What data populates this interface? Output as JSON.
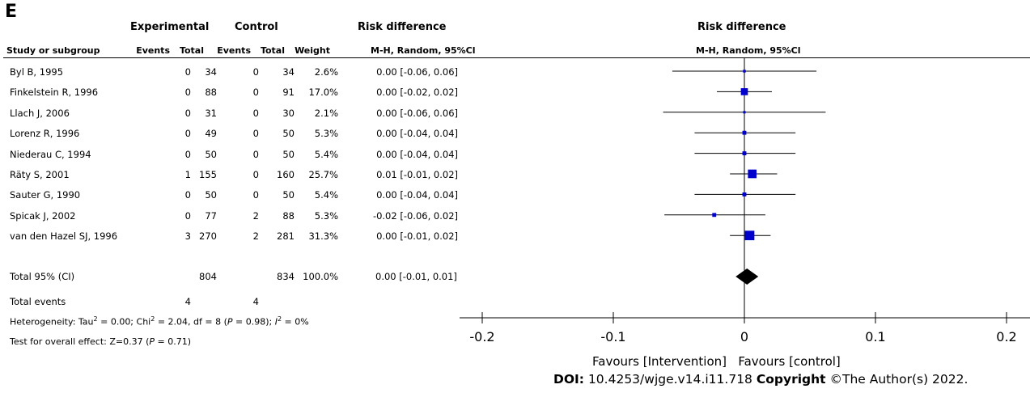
{
  "panel_label": "E",
  "headers": {
    "experimental": "Experimental",
    "control": "Control",
    "risk_difference_left": "Risk difference",
    "risk_difference_right": "Risk difference",
    "study_or_subgroup": "Study or subgroup",
    "events_exp": "Events",
    "total_exp": "Total",
    "events_ctrl": "Events",
    "total_ctrl": "Total",
    "weight": "Weight",
    "method_left": "M-H, Random, 95%Cl",
    "method_right": "M-H, Random, 95%Cl"
  },
  "studies": [
    {
      "name": "Byl B, 1995",
      "e_ev": "0",
      "e_tot": "34",
      "c_ev": "0",
      "c_tot": "34",
      "weight": "2.6%",
      "ci": "0.00 [-0.06, 0.06]"
    },
    {
      "name": "Finkelstein R, 1996",
      "e_ev": "0",
      "e_tot": "88",
      "c_ev": "0",
      "c_tot": "91",
      "weight": "17.0%",
      "ci": "0.00 [-0.02, 0.02]"
    },
    {
      "name": "Llach J, 2006",
      "e_ev": "0",
      "e_tot": "31",
      "c_ev": "0",
      "c_tot": "30",
      "weight": "2.1%",
      "ci": "0.00 [-0.06, 0.06]"
    },
    {
      "name": "Lorenz R, 1996",
      "e_ev": "0",
      "e_tot": "49",
      "c_ev": "0",
      "c_tot": "50",
      "weight": "5.3%",
      "ci": "0.00 [-0.04, 0.04]"
    },
    {
      "name": "Niederau C, 1994",
      "e_ev": "0",
      "e_tot": "50",
      "c_ev": "0",
      "c_tot": "50",
      "weight": "5.4%",
      "ci": "0.00 [-0.04, 0.04]"
    },
    {
      "name": "Räty S, 2001",
      "e_ev": "1",
      "e_tot": "155",
      "c_ev": "0",
      "c_tot": "160",
      "weight": "25.7%",
      "ci": "0.01 [-0.01, 0.02]"
    },
    {
      "name": "Sauter G, 1990",
      "e_ev": "0",
      "e_tot": "50",
      "c_ev": "0",
      "c_tot": "50",
      "weight": "5.4%",
      "ci": "0.00 [-0.04, 0.04]"
    },
    {
      "name": "Spicak J, 2002",
      "e_ev": "0",
      "e_tot": "77",
      "c_ev": "2",
      "c_tot": "88",
      "weight": "5.3%",
      "ci": "-0.02 [-0.06, 0.02]"
    },
    {
      "name": "van den Hazel SJ, 1996",
      "e_ev": "3",
      "e_tot": "270",
      "c_ev": "2",
      "c_tot": "281",
      "weight": "31.3%",
      "ci": "0.00 [-0.01, 0.02]"
    }
  ],
  "total": {
    "name": "Total 95% (CI)",
    "e_tot": "804",
    "c_tot": "834",
    "weight": "100.0%",
    "ci": "0.00 [-0.01, 0.01]"
  },
  "total_events": {
    "name": "Total events",
    "e_ev": "4",
    "c_ev": "4"
  },
  "heterogeneity": {
    "pre": "Heterogeneity: Tau",
    "sup1": "2",
    "mid1": " = 0.00; Chi",
    "sup2": "2",
    "mid2": " = 2.04, df = 8 (",
    "p": "P",
    "mid3": " = 0.98); ",
    "i": "I",
    "sup3": "2",
    "end": " = 0%"
  },
  "overall": {
    "pre": "Test for overall effect: Z=0.37 (",
    "p": "P",
    "end": " = 0.71)"
  },
  "favours": {
    "left": "Favours [Intervention]",
    "right": "Favours [control]"
  },
  "doi": {
    "label": "DOI:",
    "value": " 10.4253/wjge.v14.i11.718 ",
    "copyright_label": "Copyright",
    "copyright_value": " ©The Author(s) 2022."
  },
  "chart_data": {
    "type": "scatter",
    "title": "Risk difference",
    "subtitle": "M-H, Random, 95%Cl",
    "xlabel": "",
    "xlim": [
      -0.2,
      0.2
    ],
    "xticks": [
      -0.2,
      -0.1,
      0,
      0.1,
      0.2
    ],
    "xtick_labels": [
      "-0.2",
      "-0.1",
      "0",
      "0.1",
      "0.2"
    ],
    "marker_color": "#0000cc",
    "diamond_color": "#000000",
    "points": [
      {
        "study": "Byl B, 1995",
        "est": 0.0,
        "lo": -0.055,
        "hi": 0.055,
        "weight": 2.6
      },
      {
        "study": "Finkelstein R, 1996",
        "est": 0.0,
        "lo": -0.021,
        "hi": 0.021,
        "weight": 17.0
      },
      {
        "study": "Llach J, 2006",
        "est": 0.0,
        "lo": -0.062,
        "hi": 0.062,
        "weight": 2.1
      },
      {
        "study": "Lorenz R, 1996",
        "est": 0.0,
        "lo": -0.038,
        "hi": 0.039,
        "weight": 5.3
      },
      {
        "study": "Niederau C, 1994",
        "est": 0.0,
        "lo": -0.038,
        "hi": 0.039,
        "weight": 5.4
      },
      {
        "study": "Räty S, 2001",
        "est": 0.006,
        "lo": -0.011,
        "hi": 0.025,
        "weight": 25.7
      },
      {
        "study": "Sauter G, 1990",
        "est": 0.0,
        "lo": -0.038,
        "hi": 0.039,
        "weight": 5.4
      },
      {
        "study": "Spicak J, 2002",
        "est": -0.023,
        "lo": -0.061,
        "hi": 0.016,
        "weight": 5.3
      },
      {
        "study": "van den Hazel SJ, 1996",
        "est": 0.004,
        "lo": -0.011,
        "hi": 0.02,
        "weight": 31.3
      }
    ],
    "pooled": {
      "est": 0.002,
      "lo": -0.007,
      "hi": 0.011
    }
  }
}
